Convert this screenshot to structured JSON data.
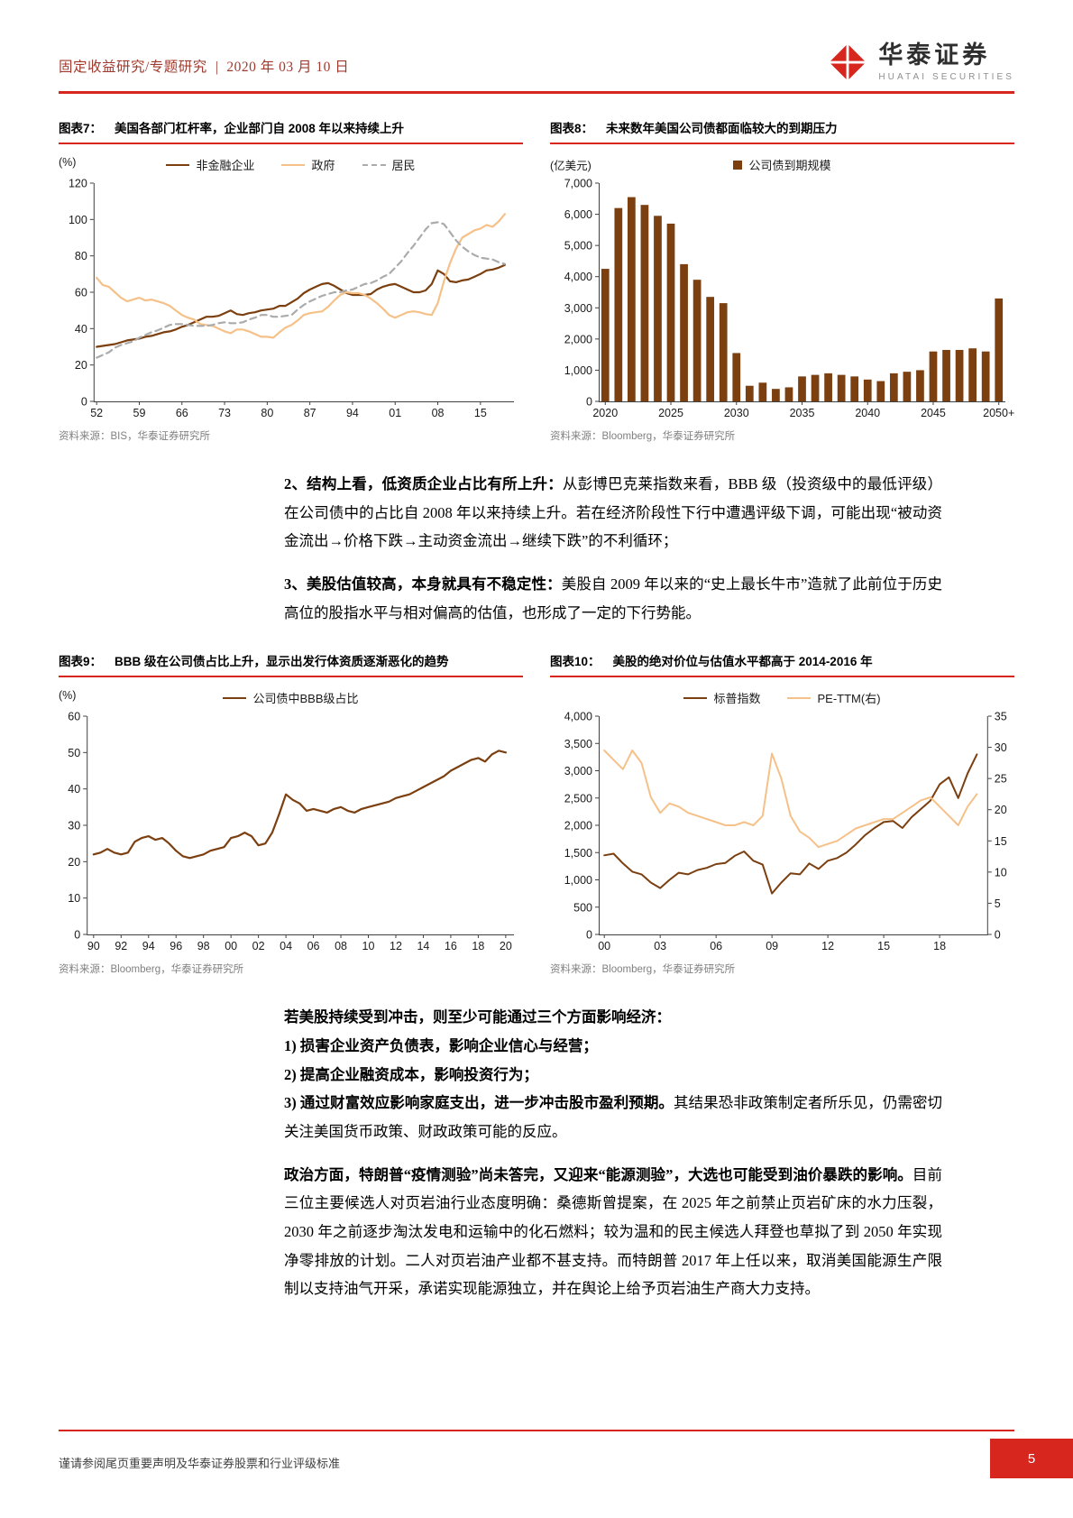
{
  "colors": {
    "accent_red": "#D7261E",
    "header_red": "#A03A2E",
    "chart_brown": "#7B3F10",
    "chart_tan": "#F5C189",
    "chart_gray": "#ABABAB"
  },
  "header": {
    "category": "固定收益研究/专题研究",
    "separator": "|",
    "date": "2020 年 03 月 10 日",
    "brand_cn": "华泰证券",
    "brand_en": "HUATAI SECURITIES"
  },
  "body1": {
    "p2_lead": "2、结构上看，低资质企业占比有所上升：",
    "p2_rest": "从彭博巴克莱指数来看，BBB 级（投资级中的最低评级）在公司债中的占比自 2008 年以来持续上升。若在经济阶段性下行中遭遇评级下调，可能出现“被动资金流出→价格下跌→主动资金流出→继续下跌”的不利循环；",
    "p3_lead": "3、美股估值较高，本身就具有不稳定性：",
    "p3_rest": "美股自 2009 年以来的“史上最长牛市”造就了此前位于历史高位的股指水平与相对偏高的估值，也形成了一定的下行势能。"
  },
  "body2": {
    "intro": "若美股持续受到冲击，则至少可能通过三个方面影响经济：",
    "item1": "1) 损害企业资产负债表，影响企业信心与经营；",
    "item2": "2) 提高企业融资成本，影响投资行为；",
    "item3_bold": "3) 通过财富效应影响家庭支出，进一步冲击股市盈利预期。",
    "item3_rest": "其结果恐非政策制定者所乐见，仍需密切关注美国货币政策、财政政策可能的反应。",
    "p4_lead": "政治方面，特朗普“疫情测验”尚未答完，又迎来“能源测验”，大选也可能受到油价暴跌的影响。",
    "p4_rest": "目前三位主要候选人对页岩油行业态度明确：桑德斯曾提案，在 2025 年之前禁止页岩矿床的水力压裂，2030 年之前逐步淘汰发电和运输中的化石燃料；较为温和的民主候选人拜登也草拟了到 2050 年实现净零排放的计划。二人对页岩油产业都不甚支持。而特朗普 2017 年上任以来，取消美国能源生产限制以支持油气开采，承诺实现能源独立，并在舆论上给予页岩油生产商大力支持。"
  },
  "footer": {
    "disclaimer": "谨请参阅尾页重要声明及华泰证券股票和行业评级标准",
    "page_number": "5"
  },
  "chart_data": [
    {
      "id": "fig7",
      "type": "line",
      "fig_label": "图表7：",
      "title": "美国各部门杠杆率，企业部门自 2008 年以来持续上升",
      "unit_label": "(%)",
      "source": "资料来源：BIS，华泰证券研究所",
      "xlim": [
        1951.5,
        2020.5
      ],
      "ylim": [
        0,
        120
      ],
      "yticks": [
        {
          "v": 0,
          "l": "0"
        },
        {
          "v": 20,
          "l": "20"
        },
        {
          "v": 40,
          "l": "40"
        },
        {
          "v": 60,
          "l": "60"
        },
        {
          "v": 80,
          "l": "80"
        },
        {
          "v": 100,
          "l": "100"
        },
        {
          "v": 120,
          "l": "120"
        }
      ],
      "xticks": [
        {
          "v": 1952,
          "l": "52"
        },
        {
          "v": 1959,
          "l": "59"
        },
        {
          "v": 1966,
          "l": "66"
        },
        {
          "v": 1973,
          "l": "73"
        },
        {
          "v": 1980,
          "l": "80"
        },
        {
          "v": 1987,
          "l": "87"
        },
        {
          "v": 1994,
          "l": "94"
        },
        {
          "v": 2001,
          "l": "01"
        },
        {
          "v": 2008,
          "l": "08"
        },
        {
          "v": 2015,
          "l": "15"
        }
      ],
      "series": [
        {
          "name": "非金融企业",
          "color": "#7B3F10",
          "x0": 1952,
          "dx": 1,
          "y": [
            30,
            30.5,
            31,
            31.5,
            32.5,
            33.5,
            34,
            34.5,
            35.5,
            36,
            37,
            38,
            38.5,
            39.5,
            41,
            42,
            43.5,
            45,
            46.5,
            46.5,
            47,
            48.5,
            50,
            48,
            47.5,
            48.5,
            49,
            50,
            50.5,
            51,
            52.5,
            52.5,
            54.5,
            56.5,
            59.5,
            61.5,
            63,
            64.5,
            65,
            63.5,
            61.5,
            59.5,
            58.5,
            58.5,
            58.5,
            59,
            61.5,
            63,
            64,
            64.5,
            63,
            61.5,
            60,
            60,
            61,
            64.5,
            72,
            70,
            66,
            65.5,
            66.5,
            67,
            68.5,
            70,
            72,
            72.5,
            73.5,
            75
          ]
        },
        {
          "name": "政府",
          "color": "#F5C189",
          "x0": 1952,
          "dx": 1,
          "y": [
            68,
            64,
            63,
            60,
            57,
            55,
            56,
            57,
            55.5,
            56,
            55,
            54,
            52.5,
            50,
            47.5,
            46,
            45,
            42.5,
            42,
            41.5,
            40,
            38.5,
            37.5,
            39.5,
            39.5,
            38.5,
            37,
            35.5,
            35.5,
            35,
            38,
            40.5,
            42,
            44.5,
            47.5,
            48.5,
            49,
            49.5,
            52,
            55.5,
            58.5,
            60,
            59.5,
            59.5,
            58.5,
            56.5,
            54,
            51,
            47.5,
            46,
            47.5,
            49,
            49.5,
            49,
            48,
            47.5,
            54,
            66,
            76,
            84,
            90,
            92,
            94,
            95,
            97,
            96,
            99,
            103
          ]
        },
        {
          "name": "居民",
          "color": "#ABABAB",
          "dash": "7,5",
          "x0": 1952,
          "dx": 1,
          "y": [
            24,
            25.5,
            27,
            29.5,
            31,
            32,
            33,
            35,
            36.5,
            38,
            39,
            40.5,
            42,
            42.5,
            42.5,
            42,
            41.5,
            41.5,
            41.5,
            42,
            43,
            43.5,
            43,
            43,
            43.5,
            45,
            46,
            47.5,
            47.5,
            46.5,
            46.5,
            47,
            47.5,
            50.5,
            53,
            55,
            56.5,
            58,
            59,
            60,
            60,
            61,
            61.5,
            63,
            64.5,
            65,
            66.5,
            68.5,
            70,
            73.5,
            77,
            81.5,
            85.5,
            90,
            94.5,
            98,
            98.5,
            97.5,
            93,
            88.5,
            85,
            82.5,
            80.5,
            79,
            78.5,
            78,
            76.5,
            75.5
          ]
        }
      ]
    },
    {
      "id": "fig8",
      "type": "bar",
      "fig_label": "图表8：",
      "title": "未来数年美国公司债都面临较大的到期压力",
      "unit_label": "(亿美元)",
      "source": "资料来源：Bloomberg，华泰证券研究所",
      "x0": 2020,
      "xlim": [
        2020,
        2051
      ],
      "ylim": [
        0,
        7000
      ],
      "yticks": [
        {
          "v": 0,
          "l": "0"
        },
        {
          "v": 1000,
          "l": "1,000"
        },
        {
          "v": 2000,
          "l": "2,000"
        },
        {
          "v": 3000,
          "l": "3,000"
        },
        {
          "v": 4000,
          "l": "4,000"
        },
        {
          "v": 5000,
          "l": "5,000"
        },
        {
          "v": 6000,
          "l": "6,000"
        },
        {
          "v": 7000,
          "l": "7,000"
        }
      ],
      "xticks": [
        {
          "v": 2020,
          "l": "2020"
        },
        {
          "v": 2025,
          "l": "2025"
        },
        {
          "v": 2030,
          "l": "2030"
        },
        {
          "v": 2035,
          "l": "2035"
        },
        {
          "v": 2040,
          "l": "2040"
        },
        {
          "v": 2045,
          "l": "2045"
        },
        {
          "v": 2050,
          "l": "2050+"
        }
      ],
      "series": [
        {
          "name": "公司债到期规模",
          "color": "#7B3F10"
        }
      ],
      "values": [
        4250,
        6200,
        6550,
        6300,
        5950,
        5700,
        4400,
        3900,
        3350,
        3150,
        1550,
        500,
        600,
        400,
        450,
        800,
        850,
        900,
        850,
        800,
        700,
        650,
        900,
        950,
        1000,
        1600,
        1650,
        1650,
        1700,
        1600,
        3300
      ]
    },
    {
      "id": "fig9",
      "type": "line",
      "fig_label": "图表9：",
      "title": "BBB 级在公司债占比上升，显示出发行体资质逐渐恶化的趋势",
      "unit_label": "(%)",
      "source": "资料来源：Bloomberg，华泰证券研究所",
      "xlim": [
        1989.5,
        2020.6
      ],
      "ylim": [
        0,
        60
      ],
      "yticks": [
        {
          "v": 0,
          "l": "0"
        },
        {
          "v": 10,
          "l": "10"
        },
        {
          "v": 20,
          "l": "20"
        },
        {
          "v": 30,
          "l": "30"
        },
        {
          "v": 40,
          "l": "40"
        },
        {
          "v": 50,
          "l": "50"
        },
        {
          "v": 60,
          "l": "60"
        }
      ],
      "xticks": [
        {
          "v": 1990,
          "l": "90"
        },
        {
          "v": 1992,
          "l": "92"
        },
        {
          "v": 1994,
          "l": "94"
        },
        {
          "v": 1996,
          "l": "96"
        },
        {
          "v": 1998,
          "l": "98"
        },
        {
          "v": 2000,
          "l": "00"
        },
        {
          "v": 2002,
          "l": "02"
        },
        {
          "v": 2004,
          "l": "04"
        },
        {
          "v": 2006,
          "l": "06"
        },
        {
          "v": 2008,
          "l": "08"
        },
        {
          "v": 2010,
          "l": "10"
        },
        {
          "v": 2012,
          "l": "12"
        },
        {
          "v": 2014,
          "l": "14"
        },
        {
          "v": 2016,
          "l": "16"
        },
        {
          "v": 2018,
          "l": "18"
        },
        {
          "v": 2020,
          "l": "20"
        }
      ],
      "series": [
        {
          "name": "公司债中BBB级占比",
          "color": "#7B3F10",
          "x0": 1990,
          "dx": 0.5,
          "y": [
            22,
            22.5,
            23.5,
            22.5,
            22,
            22.5,
            25.5,
            26.5,
            27,
            26,
            26.5,
            25,
            23,
            21.5,
            21,
            21.5,
            22,
            23,
            23.5,
            24,
            26.5,
            27,
            28,
            27,
            24.5,
            25,
            28,
            33,
            38.5,
            37,
            36,
            34,
            34.5,
            34,
            33.5,
            34.5,
            35,
            34,
            33.5,
            34.5,
            35,
            35.5,
            36,
            36.5,
            37.5,
            38,
            38.5,
            39.5,
            40.5,
            41.5,
            42.5,
            43.5,
            45,
            46,
            47,
            48,
            48.5,
            47.5,
            49.5,
            50.5,
            50
          ]
        }
      ]
    },
    {
      "id": "fig10",
      "type": "line",
      "fig_label": "图表10：",
      "title": "美股的绝对价位与估值水平都高于 2014-2016 年",
      "unit_label": "",
      "source": "资料来源：Bloomberg，华泰证券研究所",
      "xlim": [
        1999.7,
        2020.6
      ],
      "ylim": [
        0,
        4000
      ],
      "y2lim": [
        0,
        35
      ],
      "yticks": [
        {
          "v": 0,
          "l": "0"
        },
        {
          "v": 500,
          "l": "500"
        },
        {
          "v": 1000,
          "l": "1,000"
        },
        {
          "v": 1500,
          "l": "1,500"
        },
        {
          "v": 2000,
          "l": "2,000"
        },
        {
          "v": 2500,
          "l": "2,500"
        },
        {
          "v": 3000,
          "l": "3,000"
        },
        {
          "v": 3500,
          "l": "3,500"
        },
        {
          "v": 4000,
          "l": "4,000"
        }
      ],
      "y2ticks": [
        {
          "v": 0,
          "l": "0"
        },
        {
          "v": 5,
          "l": "5"
        },
        {
          "v": 10,
          "l": "10"
        },
        {
          "v": 15,
          "l": "15"
        },
        {
          "v": 20,
          "l": "20"
        },
        {
          "v": 25,
          "l": "25"
        },
        {
          "v": 30,
          "l": "30"
        },
        {
          "v": 35,
          "l": "35"
        }
      ],
      "xticks": [
        {
          "v": 2000,
          "l": "00"
        },
        {
          "v": 2003,
          "l": "03"
        },
        {
          "v": 2006,
          "l": "06"
        },
        {
          "v": 2009,
          "l": "09"
        },
        {
          "v": 2012,
          "l": "12"
        },
        {
          "v": 2015,
          "l": "15"
        },
        {
          "v": 2018,
          "l": "18"
        }
      ],
      "series": [
        {
          "name": "标普指数",
          "color": "#7B3F10",
          "x0": 2000,
          "dx": 0.5,
          "width": 2,
          "y": [
            1450,
            1480,
            1300,
            1150,
            1100,
            950,
            850,
            1000,
            1130,
            1100,
            1180,
            1220,
            1290,
            1310,
            1440,
            1520,
            1350,
            1280,
            750,
            950,
            1120,
            1100,
            1300,
            1200,
            1350,
            1400,
            1500,
            1650,
            1820,
            1950,
            2060,
            2080,
            1950,
            2150,
            2300,
            2450,
            2750,
            2880,
            2500,
            2950,
            3300
          ]
        },
        {
          "name": "PE-TTM(右)",
          "color": "#F5C189",
          "x0": 2000,
          "dx": 0.5,
          "axis": "right",
          "width": 2,
          "y": [
            29.5,
            28,
            26.5,
            29.5,
            27.5,
            22,
            19.5,
            21,
            20.5,
            19.5,
            19,
            18.5,
            18,
            17.5,
            17.5,
            18,
            17.5,
            19,
            29,
            25,
            19,
            16.5,
            15.5,
            14,
            14.5,
            15,
            16,
            17,
            17.5,
            18,
            18.5,
            18.5,
            19.5,
            20.5,
            21.5,
            22,
            20.5,
            19,
            17.5,
            20.5,
            22.5
          ]
        }
      ]
    }
  ]
}
